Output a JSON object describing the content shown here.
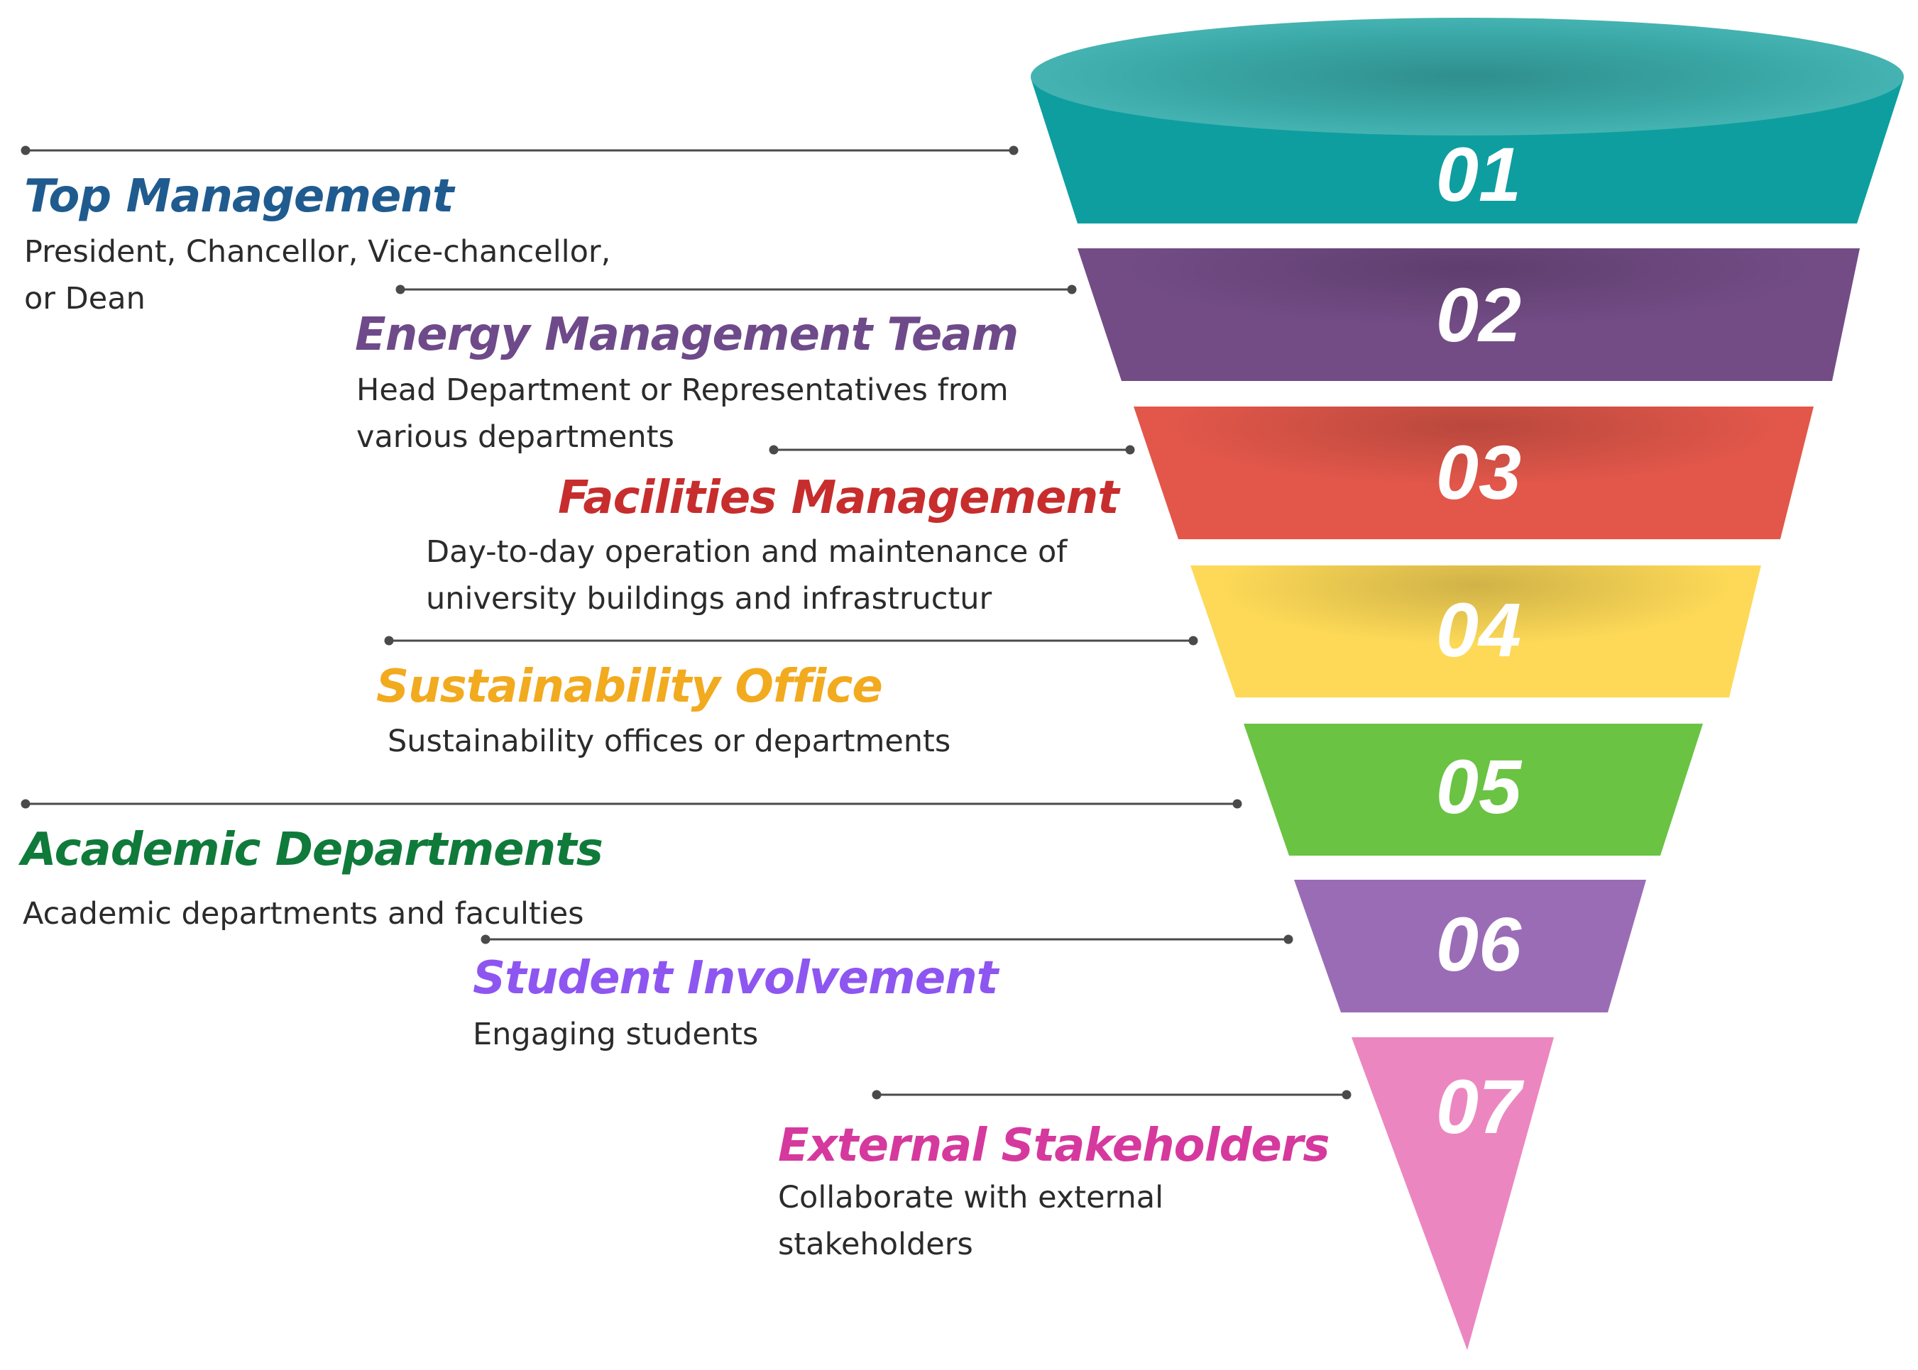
{
  "stages": [
    {
      "number": "01",
      "title": "Top Management",
      "description": [
        "President, Chancellor, Vice-chancellor,",
        "or Dean"
      ],
      "title_color": "#1f5b8f",
      "band_color": "#0e9ea0"
    },
    {
      "number": "02",
      "title": "Energy Management Team",
      "description": [
        "Head Department or Representatives from",
        "various departments"
      ],
      "title_color": "#6e4a8a",
      "band_color": "#734c86"
    },
    {
      "number": "03",
      "title": "Facilities Management",
      "description": [
        "Day-to-day operation and maintenance of",
        "university buildings and infrastructur"
      ],
      "title_color": "#c72d2d",
      "band_color": "#e2574a"
    },
    {
      "number": "04",
      "title": "Sustainability Office",
      "description": [
        "Sustainability offices or departments"
      ],
      "title_color": "#f2aa1e",
      "band_color": "#fdd957"
    },
    {
      "number": "05",
      "title": "Academic Departments",
      "description": [
        "Academic departments and faculties"
      ],
      "title_color": "#0f7a3a",
      "band_color": "#6ac342"
    },
    {
      "number": "06",
      "title": "Student Involvement",
      "description": [
        "Engaging students"
      ],
      "title_color": "#8e56f0",
      "band_color": "#9a6cb6"
    },
    {
      "number": "07",
      "title": "External Stakeholders",
      "description": [
        "Collaborate with external",
        "stakeholders"
      ],
      "title_color": "#d6399d",
      "band_color": "#ec86c0"
    }
  ]
}
